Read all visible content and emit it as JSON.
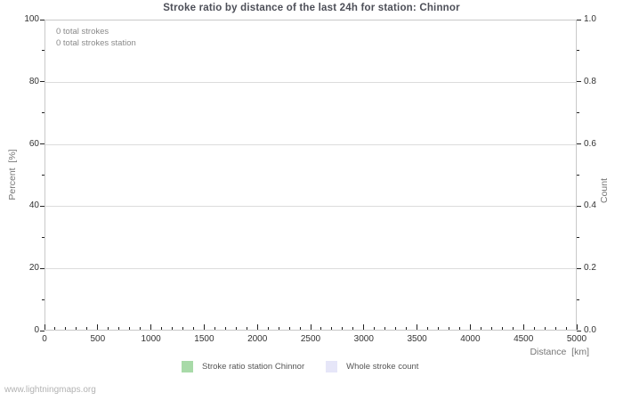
{
  "chart": {
    "title": "Stroke ratio by distance of the last 24h for station: Chinnor",
    "annotations": [
      "0 total strokes",
      "0 total strokes station"
    ],
    "ylabel_left": "Percent  [%]",
    "ylabel_right": "Count",
    "xlabel": "Distance  [km]",
    "left_axis": {
      "tick_values": [
        0,
        20,
        40,
        60,
        80,
        100
      ],
      "tick_labels": [
        "0",
        "20",
        "40",
        "60",
        "80",
        "100"
      ],
      "minor_step": 10,
      "range": [
        0,
        100
      ]
    },
    "right_axis": {
      "tick_values": [
        0,
        0.2,
        0.4,
        0.6,
        0.8,
        1.0
      ],
      "tick_labels": [
        "0.0",
        "0.2",
        "0.4",
        "0.6",
        "0.8",
        "1.0"
      ],
      "minor_step": 0.1,
      "range": [
        0,
        1
      ]
    },
    "x_axis": {
      "tick_values": [
        0,
        500,
        1000,
        1500,
        2000,
        2500,
        3000,
        3500,
        4000,
        4500,
        5000
      ],
      "tick_labels": [
        "0",
        "500",
        "1000",
        "1500",
        "2000",
        "2500",
        "3000",
        "3500",
        "4000",
        "4500",
        "5000"
      ],
      "minor_step": 100,
      "range": [
        0,
        5000
      ]
    },
    "legend": [
      {
        "label": "Stroke ratio station Chinnor",
        "color": "#a8daa8"
      },
      {
        "label": "Whole stroke count",
        "color": "#e6e6f8"
      }
    ],
    "colors": {
      "gridline": "#dcdcdc",
      "plot_border": "#c9c9c9",
      "tick_mark": "#222222",
      "title_text": "#4d4f58"
    }
  },
  "chart_data": {
    "type": "line",
    "title": "Stroke ratio by distance of the last 24h for station: Chinnor",
    "xlabel": "Distance  [km]",
    "ylabel": "Percent  [%]",
    "ylabel_right": "Count",
    "xlim": [
      0,
      5000
    ],
    "ylim": [
      0,
      100
    ],
    "ylim_right": [
      0,
      1
    ],
    "grid": true,
    "legend_position": "bottom",
    "x": [],
    "series": [
      {
        "name": "Stroke ratio station Chinnor",
        "axis": "left",
        "color": "#a8daa8",
        "values": []
      },
      {
        "name": "Whole stroke count",
        "axis": "right",
        "color": "#e6e6f8",
        "values": []
      }
    ],
    "annotations": [
      "0 total strokes",
      "0 total strokes station"
    ],
    "total_strokes": 0,
    "total_strokes_station": 0
  },
  "footer": {
    "watermark": "www.lightningmaps.org"
  }
}
